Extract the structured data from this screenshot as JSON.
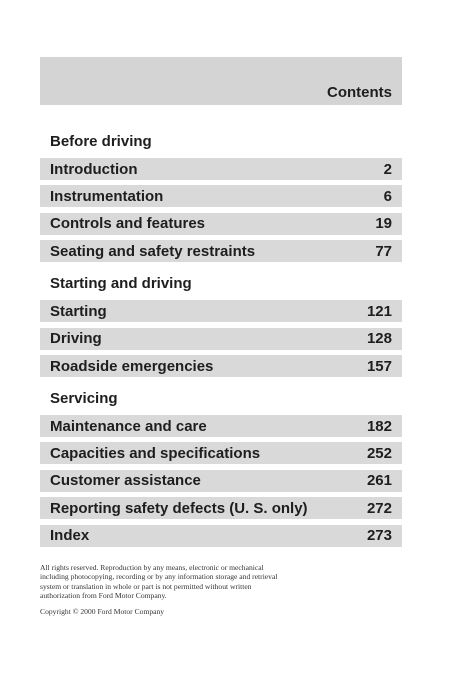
{
  "header": {
    "title": "Contents"
  },
  "sections": [
    {
      "heading": "Before driving",
      "entries": [
        {
          "title": "Introduction",
          "page": 2
        },
        {
          "title": "Instrumentation",
          "page": 6
        },
        {
          "title": "Controls and features",
          "page": 19
        },
        {
          "title": "Seating and safety restraints",
          "page": 77
        }
      ]
    },
    {
      "heading": "Starting and driving",
      "entries": [
        {
          "title": "Starting",
          "page": 121
        },
        {
          "title": "Driving",
          "page": 128
        },
        {
          "title": "Roadside  emergencies",
          "page": 157
        }
      ]
    },
    {
      "heading": "Servicing",
      "entries": [
        {
          "title": "Maintenance and care",
          "page": 182
        },
        {
          "title": "Capacities and specifications",
          "page": 252
        },
        {
          "title": "Customer assistance",
          "page": 261
        },
        {
          "title": "Reporting safety defects (U. S. only)",
          "page": 272
        },
        {
          "title": "Index",
          "page": 273
        }
      ]
    }
  ],
  "footer": {
    "notice": [
      "All rights reserved. Reproduction by any means, electronic or mechanical",
      "including photocopying, recording or by any information storage and retrieval",
      "system or translation in whole or part is not permitted without written",
      "authorization from Ford Motor Company."
    ],
    "copyright": "Copyright © 2000 Ford Motor Company"
  }
}
